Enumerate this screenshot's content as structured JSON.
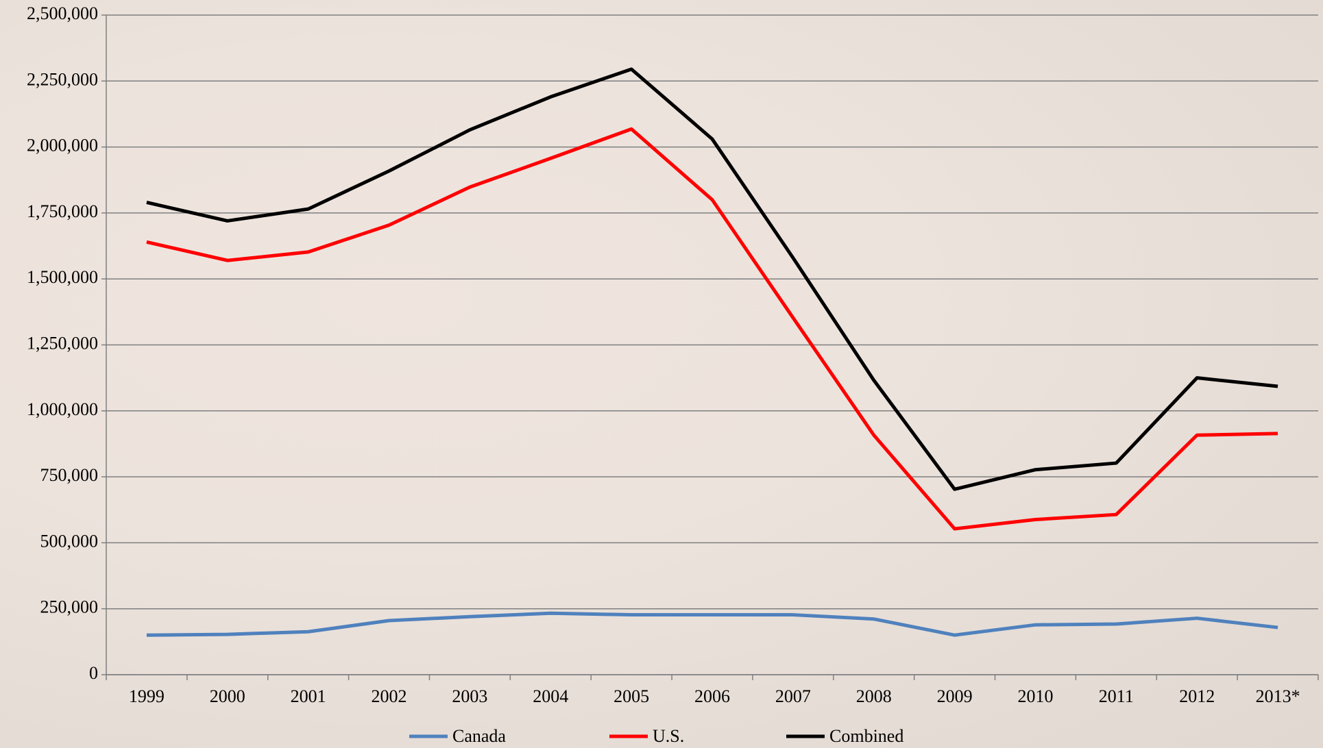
{
  "chart_data": {
    "type": "line",
    "categories": [
      "1999",
      "2000",
      "2001",
      "2002",
      "2003",
      "2004",
      "2005",
      "2006",
      "2007",
      "2008",
      "2009",
      "2010",
      "2011",
      "2012",
      "2013*"
    ],
    "series": [
      {
        "name": "Canada",
        "color": "#4f81bd",
        "values": [
          150000,
          153000,
          163000,
          205000,
          220000,
          233000,
          227000,
          227000,
          227000,
          211000,
          150000,
          189000,
          192000,
          214000,
          179000
        ]
      },
      {
        "name": "U.S.",
        "color": "#ff0000",
        "values": [
          1640000,
          1570000,
          1602000,
          1704000,
          1848000,
          1957000,
          2068000,
          1800000,
          1353000,
          908000,
          553000,
          588000,
          607000,
          908000,
          914000
        ]
      },
      {
        "name": "Combined",
        "color": "#000000",
        "values": [
          1790000,
          1720000,
          1765000,
          1909000,
          2065000,
          2190000,
          2295000,
          2030000,
          1580000,
          1116000,
          703000,
          777000,
          802000,
          1125000,
          1093000
        ]
      }
    ],
    "ylim": [
      0,
      2500000
    ],
    "yticks": [
      0,
      {
        "value": 250000,
        "label": "250,000"
      },
      {
        "value": 500000,
        "label": "500,000"
      },
      {
        "value": 750000,
        "label": "750,000"
      },
      {
        "value": 1000000,
        "label": "1,000,000"
      },
      {
        "value": 1250000,
        "label": "1,250,000"
      },
      {
        "value": 1500000,
        "label": "1,500,000"
      },
      {
        "value": 1750000,
        "label": "1,750,000"
      },
      {
        "value": 2000000,
        "label": "2,000,000"
      },
      {
        "value": 2250000,
        "label": "2,250,000"
      },
      {
        "value": 2500000,
        "label": "2,500,000"
      }
    ],
    "grid": true,
    "legend": "bottom"
  }
}
